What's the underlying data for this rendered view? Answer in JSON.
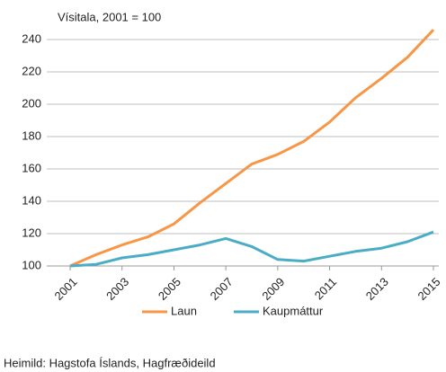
{
  "chart_data": {
    "type": "line",
    "subtitle": "Vísitala, 2001 = 100",
    "x": [
      2001,
      2002,
      2003,
      2004,
      2005,
      2006,
      2007,
      2008,
      2009,
      2010,
      2011,
      2012,
      2013,
      2014,
      2015
    ],
    "series": [
      {
        "name": "Laun",
        "color": "#f79646",
        "values": [
          100,
          107,
          113,
          118,
          126,
          139,
          151,
          163,
          169,
          177,
          189,
          204,
          216,
          229,
          246
        ]
      },
      {
        "name": "Kaupmáttur",
        "color": "#4bacc6",
        "values": [
          100,
          101,
          105,
          107,
          110,
          113,
          117,
          112,
          104,
          103,
          106,
          109,
          111,
          115,
          121
        ]
      }
    ],
    "xlim": [
      2001,
      2015
    ],
    "xticks": [
      2001,
      2003,
      2005,
      2007,
      2009,
      2011,
      2013,
      2015
    ],
    "ylim": [
      100,
      250
    ],
    "yticks": [
      100,
      120,
      140,
      160,
      180,
      200,
      220,
      240
    ],
    "grid": true,
    "legend": "bottom",
    "source": "Heimild: Hagstofa Íslands, Hagfræðideild"
  }
}
